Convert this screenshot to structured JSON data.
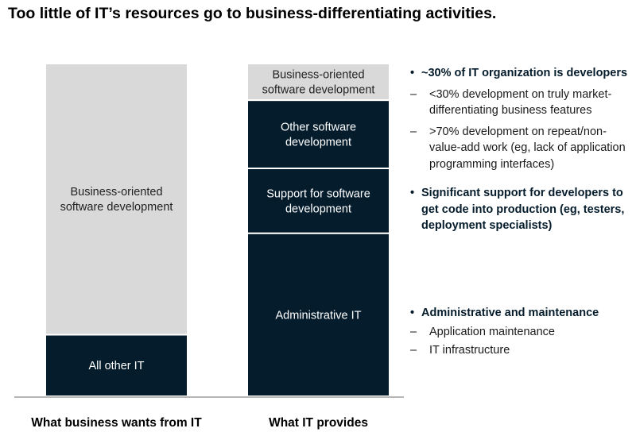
{
  "title": "Too little of IT’s resources go to business-differentiating activities.",
  "chart_data": {
    "type": "bar",
    "stacked": true,
    "categories": [
      "What business wants from IT",
      "What IT provides"
    ],
    "series": [
      {
        "category": "What business wants from IT",
        "segments": [
          {
            "label_lines": [
              "All other IT"
            ],
            "value": 18.5,
            "color": "#051c2c"
          },
          {
            "label_lines": [
              "Business-oriented",
              "software development"
            ],
            "value": 81.5,
            "color": "#d9d9d9"
          }
        ]
      },
      {
        "category": "What IT provides",
        "segments": [
          {
            "label_lines": [
              "Administrative IT"
            ],
            "value": 49.0,
            "color": "#051c2c"
          },
          {
            "label_lines": [
              "Support for software",
              "development"
            ],
            "value": 19.5,
            "color": "#051c2c"
          },
          {
            "label_lines": [
              "Other software",
              "development"
            ],
            "value": 20.5,
            "color": "#051c2c"
          },
          {
            "label_lines": [
              "Business-oriented",
              "software development"
            ],
            "value": 11.0,
            "color": "#d9d9d9"
          }
        ]
      }
    ],
    "ylim": [
      0,
      100
    ],
    "grid": false,
    "legend": "none",
    "annotations": [
      {
        "heading": "~30% of IT organization is developers",
        "items": [
          "<30% development on truly market-differentiating business features",
          ">70% development on repeat/non-value-add work (eg, lack of application programming interfaces)"
        ]
      },
      {
        "heading": "Significant support for developers to get code into production (eg, testers, deployment specialists)",
        "items": []
      },
      {
        "heading": "Administrative and maintenance",
        "items": [
          "Application maintenance",
          "IT infrastructure"
        ]
      }
    ]
  },
  "bullet_glyph": "•",
  "dash_glyph": "–",
  "colors": {
    "dark": "#051c2c",
    "light": "#d9d9d9",
    "text_dark_bg": "#ffffff",
    "text_light_bg": "#222222"
  }
}
